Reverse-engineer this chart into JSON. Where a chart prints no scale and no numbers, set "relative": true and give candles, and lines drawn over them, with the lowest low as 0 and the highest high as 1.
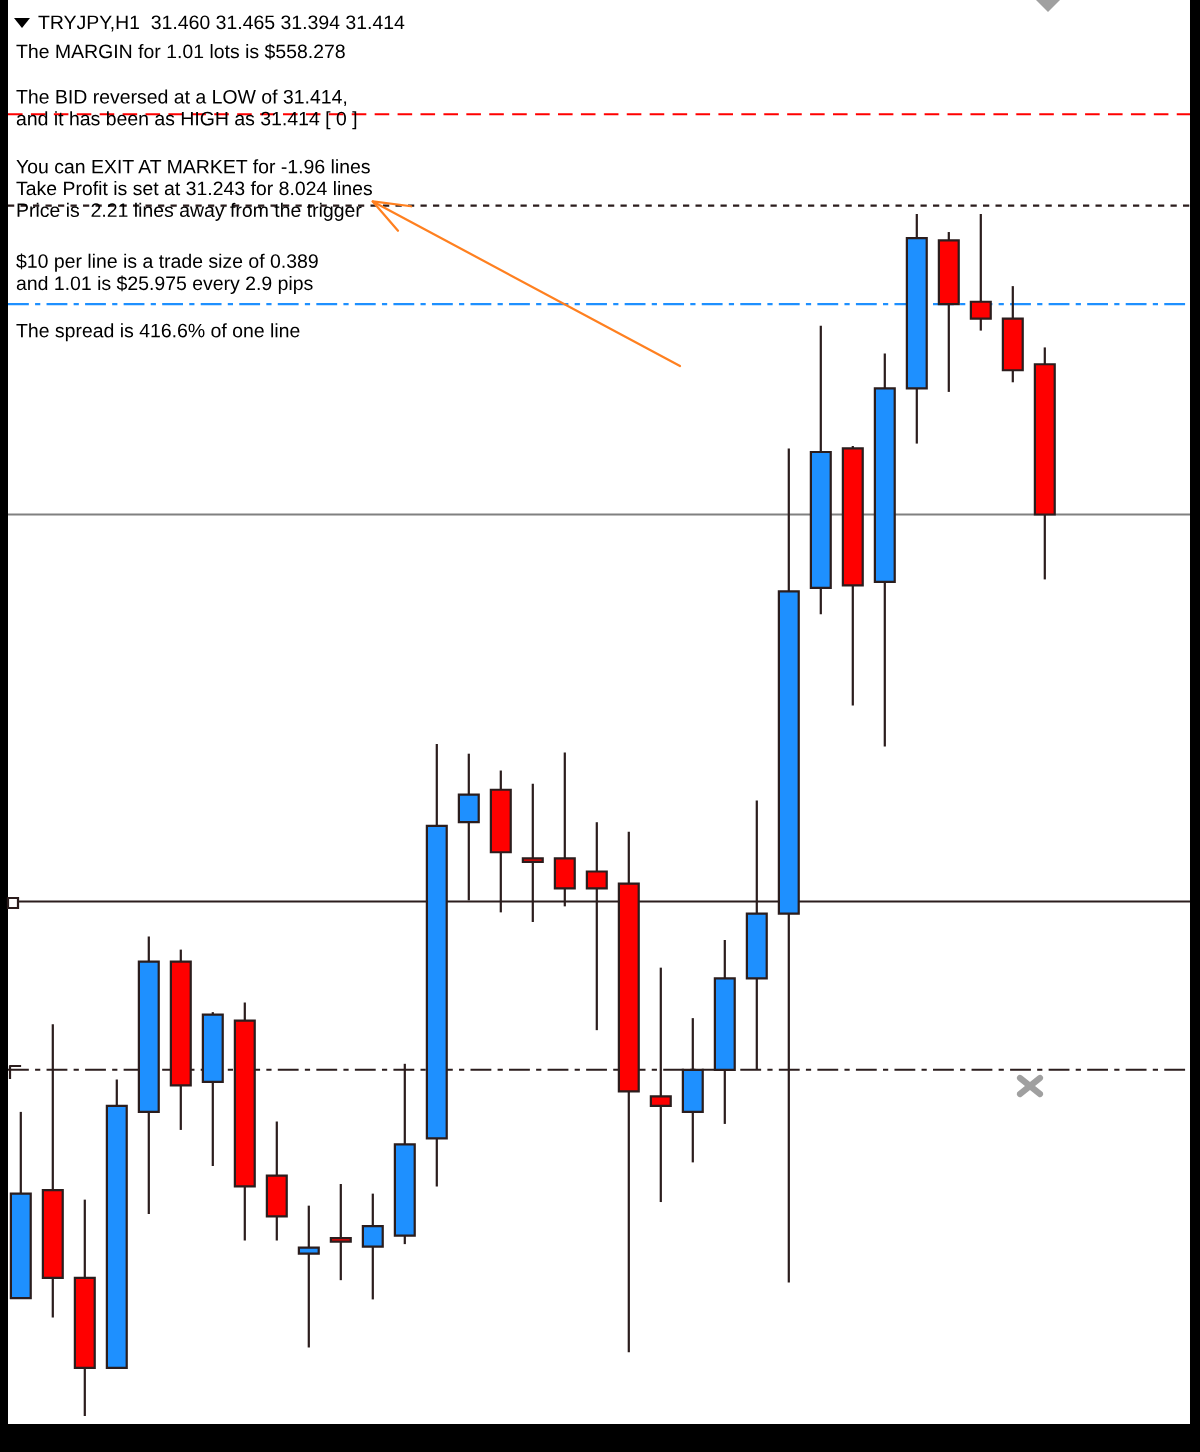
{
  "chart_data": {
    "type": "candlestick",
    "relative": true,
    "title": "TRYJPY,H1  31.460 31.465 31.394 31.414",
    "annotations": [
      "The MARGIN for 1.01 lots is $558.278",
      "The BID reversed at a LOW of 31.414,\nand it has been as HIGH as 31.414 [ 0 ]",
      "You can EXIT AT MARKET for -1.96 lines\nTake Profit is set at 31.243 for 8.024 lines\nPrice is  2.21 lines away from the trigger",
      "$10 per line is a trade size of 0.389\nand 1.01 is $25.975 every 2.9 pips",
      "The spread is 416.6% of one line"
    ],
    "categories": [
      null,
      null,
      null,
      null,
      null,
      null,
      null,
      null,
      null,
      null,
      null,
      null,
      null,
      null,
      null,
      null,
      null,
      null,
      null,
      null,
      null,
      null,
      null,
      null,
      null,
      null,
      null,
      null,
      null,
      null,
      null,
      null,
      null
    ],
    "ohlc": [
      [
        0.098,
        0.253,
        0.098,
        0.185
      ],
      [
        0.188,
        0.326,
        0.082,
        0.115
      ],
      [
        0.115,
        0.18,
        0.0,
        0.04
      ],
      [
        0.04,
        0.28,
        0.04,
        0.258
      ],
      [
        0.253,
        0.399,
        0.168,
        0.378
      ],
      [
        0.378,
        0.388,
        0.238,
        0.275
      ],
      [
        0.278,
        0.336,
        0.208,
        0.334
      ],
      [
        0.329,
        0.344,
        0.146,
        0.191
      ],
      [
        0.2,
        0.245,
        0.146,
        0.166
      ],
      [
        0.135,
        0.175,
        0.057,
        0.14
      ],
      [
        0.148,
        0.193,
        0.113,
        0.145
      ],
      [
        0.141,
        0.185,
        0.097,
        0.158
      ],
      [
        0.15,
        0.293,
        0.143,
        0.226
      ],
      [
        0.231,
        0.559,
        0.191,
        0.491
      ],
      [
        0.494,
        0.551,
        0.429,
        0.517
      ],
      [
        0.521,
        0.537,
        0.419,
        0.469
      ],
      [
        0.464,
        0.526,
        0.411,
        0.461
      ],
      [
        0.464,
        0.552,
        0.424,
        0.439
      ],
      [
        0.453,
        0.494,
        0.321,
        0.439
      ],
      [
        0.443,
        0.486,
        0.053,
        0.27
      ],
      [
        0.266,
        0.373,
        0.178,
        0.258
      ],
      [
        0.253,
        0.331,
        0.211,
        0.288
      ],
      [
        0.288,
        0.396,
        0.243,
        0.364
      ],
      [
        0.364,
        0.512,
        0.288,
        0.418
      ],
      [
        0.418,
        0.805,
        0.111,
        0.686
      ],
      [
        0.689,
        0.907,
        0.667,
        0.802
      ],
      [
        0.805,
        0.807,
        0.591,
        0.691
      ],
      [
        0.694,
        0.884,
        0.557,
        0.855
      ],
      [
        0.855,
        1.0,
        0.809,
        0.98
      ],
      [
        0.978,
        0.985,
        0.852,
        0.925
      ],
      [
        0.927,
        1.0,
        0.903,
        0.913
      ],
      [
        0.913,
        0.94,
        0.86,
        0.87
      ],
      [
        0.875,
        0.889,
        0.696,
        0.75
      ]
    ],
    "colors": [
      "#1e90ff",
      "#ff0000",
      "#ff0000",
      "#1e90ff",
      "#1e90ff",
      "#ff0000",
      "#1e90ff",
      "#ff0000",
      "#ff0000",
      "#1e90ff",
      "#ff0000",
      "#1e90ff",
      "#1e90ff",
      "#1e90ff",
      "#1e90ff",
      "#ff0000",
      "#ff0000",
      "#ff0000",
      "#ff0000",
      "#ff0000",
      "#ff0000",
      "#1e90ff",
      "#1e90ff",
      "#1e90ff",
      "#1e90ff",
      "#1e90ff",
      "#ff0000",
      "#1e90ff",
      "#1e90ff",
      "#ff0000",
      "#ff0000",
      "#ff0000",
      "#ff0000"
    ],
    "ref_lines": [
      {
        "axis": "y",
        "value": 1.083,
        "color": "#ff0000",
        "line_style": "dashed"
      },
      {
        "axis": "y",
        "value": 1.007,
        "color": "#2b1d1d",
        "line_style": "dotted"
      },
      {
        "axis": "y",
        "value": 0.925,
        "color": "#1e90ff",
        "line_style": "dashdot"
      },
      {
        "axis": "y",
        "value": 0.75,
        "color": "#808080",
        "line_style": "solid"
      },
      {
        "axis": "y",
        "value": 0.428,
        "color": "#2b1d1d",
        "line_style": "solid"
      },
      {
        "axis": "y",
        "value": 0.288,
        "color": "#2b1d1d",
        "line_style": "dashdot"
      }
    ]
  }
}
